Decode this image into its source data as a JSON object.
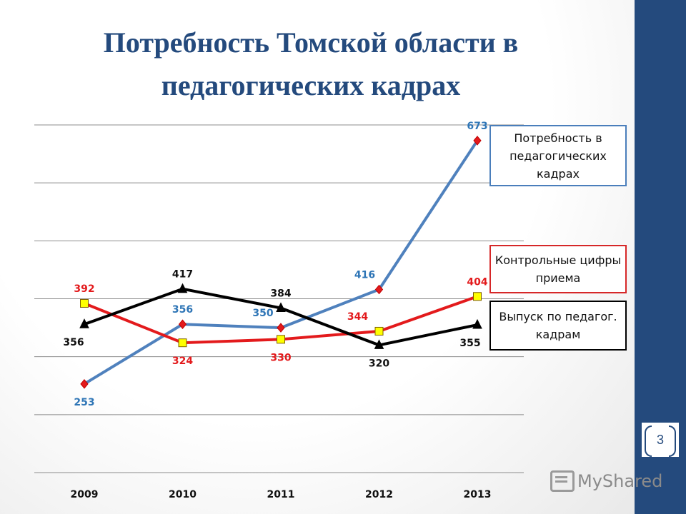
{
  "title": "Потребность Томской области в педагогических кадрах",
  "page_number": "3",
  "logo_text": "MyShared",
  "legend": {
    "demand": "Потребность в педагогических кадрах",
    "admission": "Контрольные цифры приема",
    "graduates": "Выпуск по педагог. кадрам"
  },
  "chart_data": {
    "type": "line",
    "categories": [
      "2009",
      "2010",
      "2011",
      "2012",
      "2013"
    ],
    "series": [
      {
        "name": "Потребность в педагогических кадрах",
        "values": [
          253,
          356,
          350,
          416,
          673
        ],
        "color": "#4f81bd",
        "label_color": "#2e75b6",
        "marker": "diamond"
      },
      {
        "name": "Контрольные цифры приема",
        "values": [
          392,
          324,
          330,
          344,
          404
        ],
        "color": "#e31a1c",
        "label_color": "#e31a1c",
        "marker": "square"
      },
      {
        "name": "Выпуск по педагог. кадрам",
        "values": [
          356,
          417,
          384,
          320,
          355
        ],
        "color": "#000000",
        "label_color": "#111111",
        "marker": "triangle"
      }
    ],
    "ylim": [
      100,
      700
    ],
    "y_gridlines": [
      100,
      200,
      300,
      400,
      500,
      600,
      700
    ],
    "grid": true,
    "legend_position": "right"
  }
}
